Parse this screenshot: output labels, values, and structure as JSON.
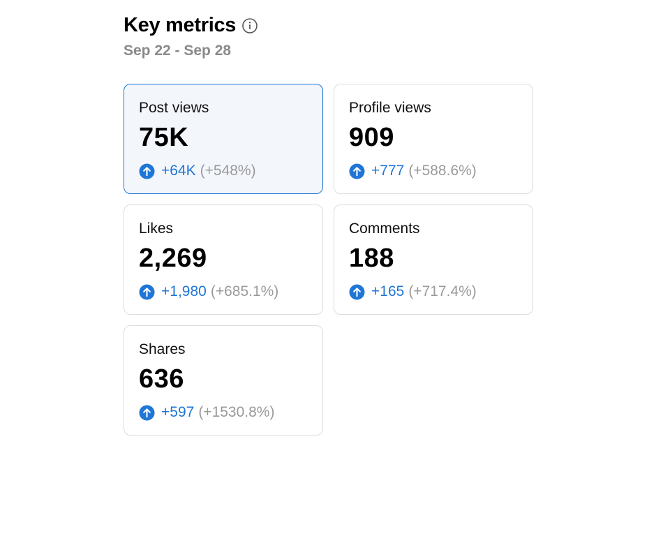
{
  "header": {
    "title": "Key metrics",
    "date_range": "Sep 22 - Sep 28"
  },
  "cards": [
    {
      "label": "Post views",
      "value": "75K",
      "change": "+64K",
      "change_pct": "(+548%)",
      "selected": true
    },
    {
      "label": "Profile views",
      "value": "909",
      "change": "+777",
      "change_pct": "(+588.6%)",
      "selected": false
    },
    {
      "label": "Likes",
      "value": "2,269",
      "change": "+1,980",
      "change_pct": "(+685.1%)",
      "selected": false
    },
    {
      "label": "Comments",
      "value": "188",
      "change": "+165",
      "change_pct": "(+717.4%)",
      "selected": false
    },
    {
      "label": "Shares",
      "value": "636",
      "change": "+597",
      "change_pct": "(+1530.8%)",
      "selected": false
    }
  ]
}
